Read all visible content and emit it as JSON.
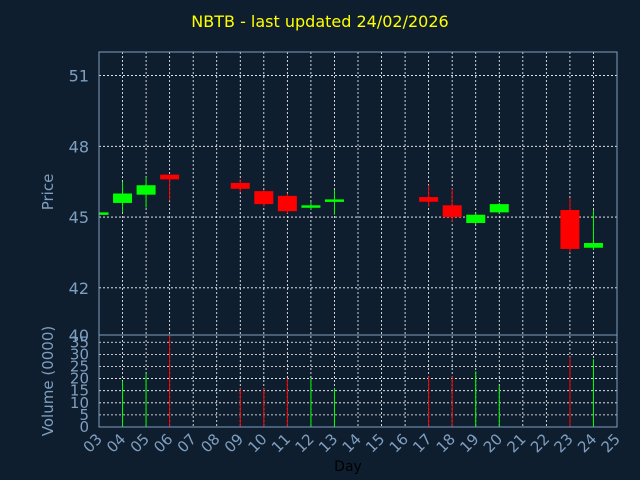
{
  "chart_data": {
    "type": "candlestick",
    "title": "NBTB - last updated 24/02/2026",
    "price_panel": {
      "ylabel": "Price",
      "ylim": [
        40,
        52
      ],
      "yticks": [
        "51",
        "48",
        "45",
        "42",
        "40"
      ],
      "grid": true
    },
    "volume_panel": {
      "ylabel": "Volume (0000)",
      "ylim": [
        0,
        38
      ],
      "yticks": [
        "35",
        "30",
        "25",
        "20",
        "15",
        "10",
        "5",
        "0"
      ],
      "grid": true
    },
    "xlabel": "Day",
    "categories": [
      "03",
      "04",
      "05",
      "06",
      "07",
      "08",
      "09",
      "10",
      "11",
      "12",
      "13",
      "14",
      "15",
      "16",
      "17",
      "18",
      "19",
      "20",
      "21",
      "22",
      "23",
      "24",
      "25"
    ],
    "candles": [
      {
        "day": "03",
        "open": 45.2,
        "close": 45.2,
        "high": 45.2,
        "low": 45.2,
        "volume": 0
      },
      {
        "day": "04",
        "open": 45.6,
        "close": 46.0,
        "high": 46.5,
        "low": 45.2,
        "volume": 19
      },
      {
        "day": "05",
        "open": 45.95,
        "close": 46.35,
        "high": 46.7,
        "low": 45.4,
        "volume": 22
      },
      {
        "day": "06",
        "open": 46.8,
        "close": 46.6,
        "high": 46.8,
        "low": 45.7,
        "volume": 38
      },
      {
        "day": "09",
        "open": 46.45,
        "close": 46.2,
        "high": 46.6,
        "low": 46.05,
        "volume": 16
      },
      {
        "day": "10",
        "open": 46.1,
        "close": 45.55,
        "high": 46.15,
        "low": 45.45,
        "volume": 16
      },
      {
        "day": "11",
        "open": 45.9,
        "close": 45.25,
        "high": 46.0,
        "low": 45.15,
        "volume": 20
      },
      {
        "day": "12",
        "open": 45.45,
        "close": 45.5,
        "high": 45.65,
        "low": 45.3,
        "volume": 20
      },
      {
        "day": "13",
        "open": 45.65,
        "close": 45.75,
        "high": 46.15,
        "low": 45.1,
        "volume": 16
      },
      {
        "day": "17",
        "open": 45.85,
        "close": 45.65,
        "high": 46.35,
        "low": 45.45,
        "volume": 21
      },
      {
        "day": "18",
        "open": 45.5,
        "close": 45.0,
        "high": 46.2,
        "low": 44.8,
        "volume": 21
      },
      {
        "day": "19",
        "open": 44.75,
        "close": 45.1,
        "high": 45.15,
        "low": 44.7,
        "volume": 23
      },
      {
        "day": "20",
        "open": 45.2,
        "close": 45.55,
        "high": 45.6,
        "low": 45.15,
        "volume": 17
      },
      {
        "day": "23",
        "open": 45.3,
        "close": 43.65,
        "high": 45.8,
        "low": 43.5,
        "volume": 29
      },
      {
        "day": "24",
        "open": 43.7,
        "close": 43.9,
        "high": 45.3,
        "low": 43.6,
        "volume": 28
      }
    ],
    "colors": {
      "background": "#0f1e2e",
      "title": "#ffff00",
      "up": "#00ff00",
      "down": "#ff0000",
      "grid": "#ffffff",
      "frame": "#7f9fc0",
      "text": "#7f9fc0"
    }
  }
}
